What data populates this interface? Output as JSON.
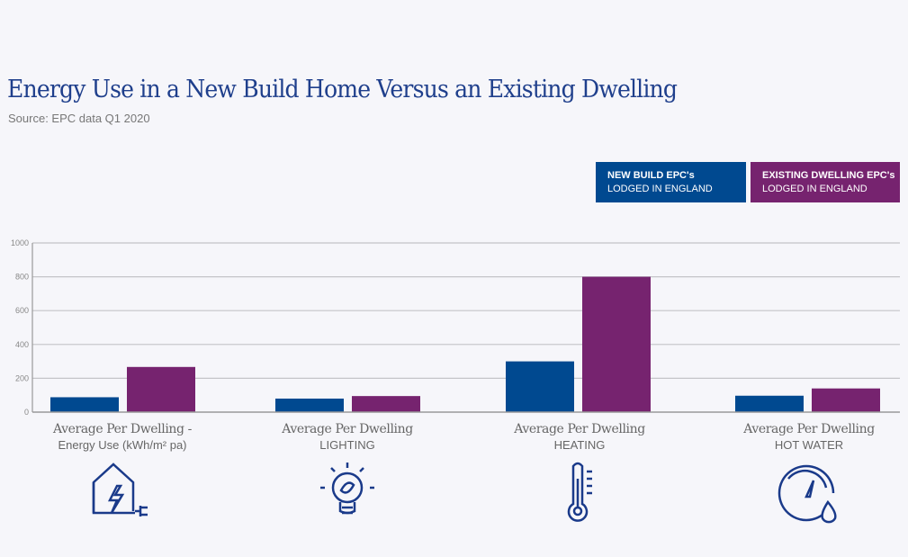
{
  "title": "Energy Use in a New Build Home Versus an Existing Dwelling",
  "subtitle": "Source: EPC data Q1 2020",
  "colors": {
    "new_build": "#004990",
    "existing": "#76236f",
    "title": "#1f3f8c",
    "icons": "#1a3a8a"
  },
  "legend": [
    {
      "line1": "NEW BUILD EPC's",
      "line2": "LODGED IN ENGLAND",
      "color": "#004990"
    },
    {
      "line1": "EXISTING DWELLING EPC's",
      "line2": "LODGED IN ENGLAND",
      "color": "#76236f"
    }
  ],
  "categories": [
    {
      "line1": "Average Per Dwelling -",
      "line2": "Energy Use (kWh/m² pa)",
      "icon": "house-electric-plug-icon"
    },
    {
      "line1": "Average Per Dwelling",
      "line2": "LIGHTING",
      "icon": "lightbulb-leaf-icon"
    },
    {
      "line1": "Average Per Dwelling",
      "line2": "HEATING",
      "icon": "thermometer-icon"
    },
    {
      "line1": "Average Per Dwelling",
      "line2": "HOT WATER",
      "icon": "gauge-water-drop-icon"
    }
  ],
  "chart_data": {
    "type": "bar",
    "title": "Energy Use in a New Build Home Versus an Existing Dwelling",
    "categories": [
      "Energy Use (kWh/m² pa)",
      "LIGHTING",
      "HEATING",
      "HOT WATER"
    ],
    "series": [
      {
        "name": "NEW BUILD EPC's LODGED IN ENGLAND",
        "values": [
          88,
          80,
          300,
          97
        ]
      },
      {
        "name": "EXISTING DWELLING EPC's LODGED IN ENGLAND",
        "values": [
          267,
          95,
          800,
          140
        ]
      }
    ],
    "ylim": [
      0,
      1000
    ],
    "yticks": [
      "0",
      "200",
      "400",
      "600",
      "800",
      "1000"
    ],
    "grid": true,
    "legend_position": "top-right"
  }
}
